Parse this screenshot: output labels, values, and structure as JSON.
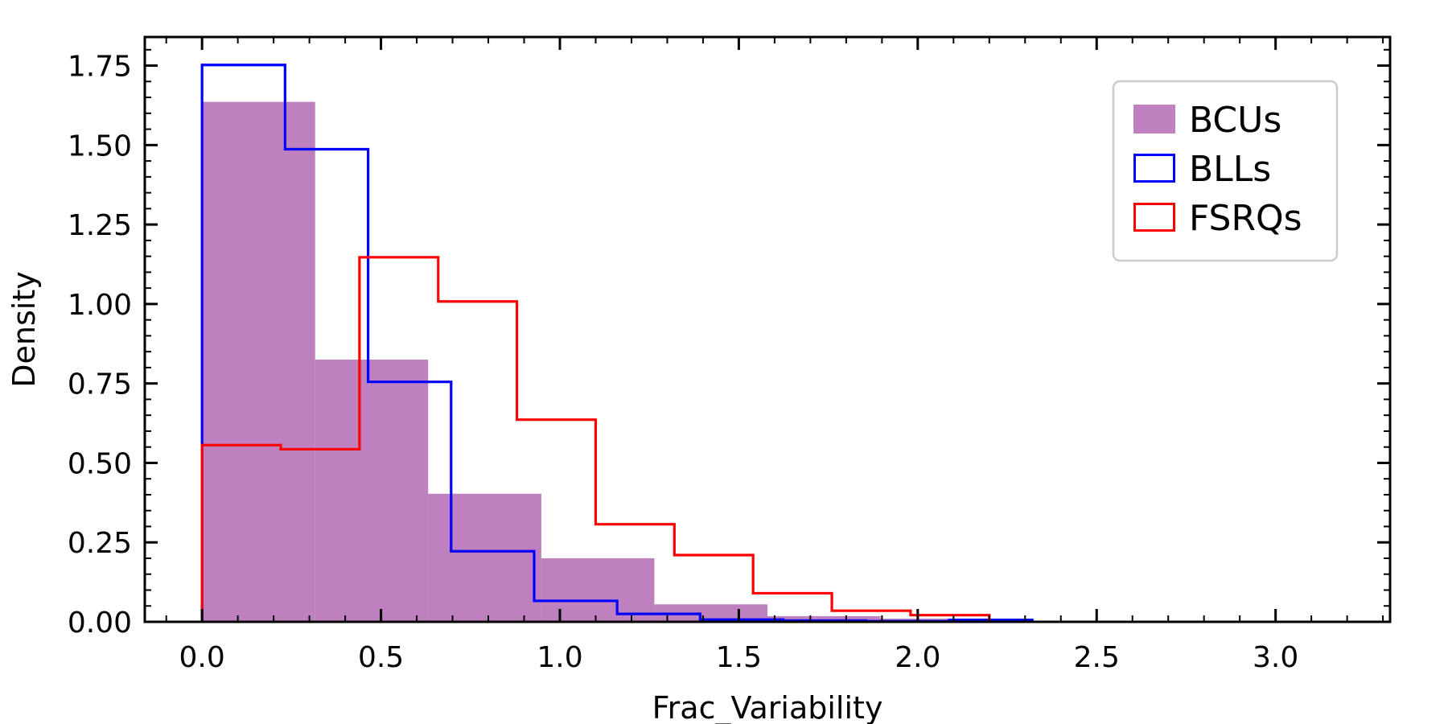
{
  "chart_data": {
    "type": "histogram",
    "xlabel": "Frac_Variability",
    "ylabel": "Density",
    "xlim": [
      -0.16,
      3.32
    ],
    "ylim": [
      0,
      1.84
    ],
    "xticks": [
      0.0,
      0.5,
      1.0,
      1.5,
      2.0,
      2.5,
      3.0
    ],
    "xtick_labels": [
      "0.0",
      "0.5",
      "1.0",
      "1.5",
      "2.0",
      "2.5",
      "3.0"
    ],
    "yticks": [
      0.0,
      0.25,
      0.5,
      0.75,
      1.0,
      1.25,
      1.5,
      1.75
    ],
    "ytick_labels": [
      "0.00",
      "0.25",
      "0.50",
      "0.75",
      "1.00",
      "1.25",
      "1.50",
      "1.75"
    ],
    "legend_position": "top-right",
    "grid": false,
    "series": [
      {
        "name": "BCUs",
        "style": "filled",
        "color": "#bf80bf",
        "bin_edges": [
          0.0,
          0.316,
          0.632,
          0.948,
          1.264,
          1.58,
          1.896,
          2.212
        ],
        "values": [
          1.636,
          0.825,
          0.403,
          0.2,
          0.055,
          0.018,
          0.01
        ]
      },
      {
        "name": "BLLs",
        "style": "step",
        "color": "#0000ff",
        "bin_edges": [
          0.0,
          0.232,
          0.464,
          0.696,
          0.928,
          1.16,
          1.392,
          1.624,
          1.856,
          2.088,
          2.32
        ],
        "values": [
          1.752,
          1.487,
          0.755,
          0.222,
          0.066,
          0.025,
          0.007,
          0.004,
          0.002,
          0.006
        ]
      },
      {
        "name": "FSRQs",
        "style": "step",
        "color": "#ff0000",
        "bin_edges": [
          0.0,
          0.22,
          0.44,
          0.66,
          0.88,
          1.1,
          1.32,
          1.54,
          1.76,
          1.98,
          2.2
        ],
        "values": [
          0.556,
          0.543,
          1.147,
          1.008,
          0.636,
          0.307,
          0.21,
          0.09,
          0.035,
          0.021
        ]
      }
    ]
  }
}
